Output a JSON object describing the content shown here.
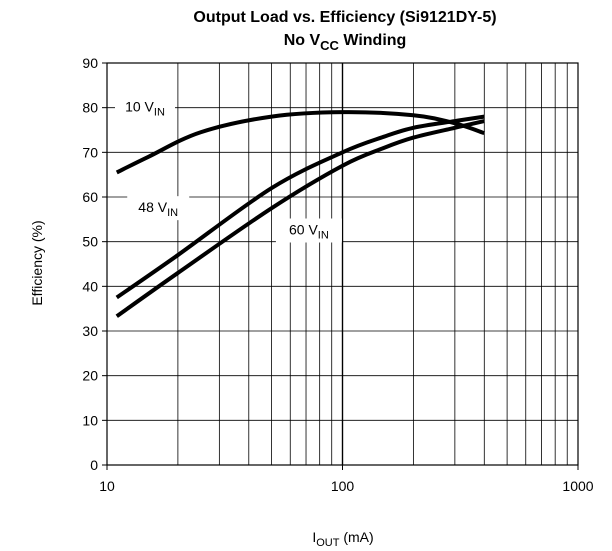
{
  "chart_data": {
    "type": "line",
    "title_line1": "Output Load vs. Efficiency (Si9121DY-5)",
    "title_line2": {
      "pre": "No V",
      "sub": "CC",
      "post": " Winding"
    },
    "xlabel": {
      "main": "I",
      "sub": "OUT",
      "post": " (mA)"
    },
    "ylabel": "Efficiency (%)",
    "xscale": "log",
    "xlim": [
      10,
      1000
    ],
    "ylim": [
      0,
      90
    ],
    "grid": true,
    "xticks": [
      {
        "value": 10,
        "label": "10"
      },
      {
        "value": 100,
        "label": "100"
      },
      {
        "value": 1000,
        "label": "1000"
      }
    ],
    "yticks": [
      {
        "value": 0,
        "label": "0"
      },
      {
        "value": 10,
        "label": "10"
      },
      {
        "value": 20,
        "label": "20"
      },
      {
        "value": 30,
        "label": "30"
      },
      {
        "value": 40,
        "label": "40"
      },
      {
        "value": 50,
        "label": "50"
      },
      {
        "value": 60,
        "label": "60"
      },
      {
        "value": 70,
        "label": "70"
      },
      {
        "value": 80,
        "label": "80"
      },
      {
        "value": 90,
        "label": "90"
      }
    ],
    "series": [
      {
        "name": {
          "main": "10 V",
          "sub": "IN"
        },
        "x": [
          11,
          15,
          25,
          50,
          100,
          200,
          300,
          400
        ],
        "y": [
          65.5,
          69,
          74.5,
          78,
          79,
          78.3,
          76.5,
          74.3
        ]
      },
      {
        "name": {
          "main": "48 V",
          "sub": "IN"
        },
        "x": [
          11,
          20,
          50,
          100,
          150,
          200,
          300,
          400
        ],
        "y": [
          37.5,
          47,
          62,
          70,
          73.5,
          75.5,
          77,
          78
        ]
      },
      {
        "name": {
          "main": "60 V",
          "sub": "IN"
        },
        "x": [
          11,
          20,
          50,
          100,
          150,
          200,
          300,
          400
        ],
        "y": [
          33.3,
          43,
          57.5,
          67,
          71,
          73.3,
          75.5,
          77
        ]
      }
    ]
  }
}
